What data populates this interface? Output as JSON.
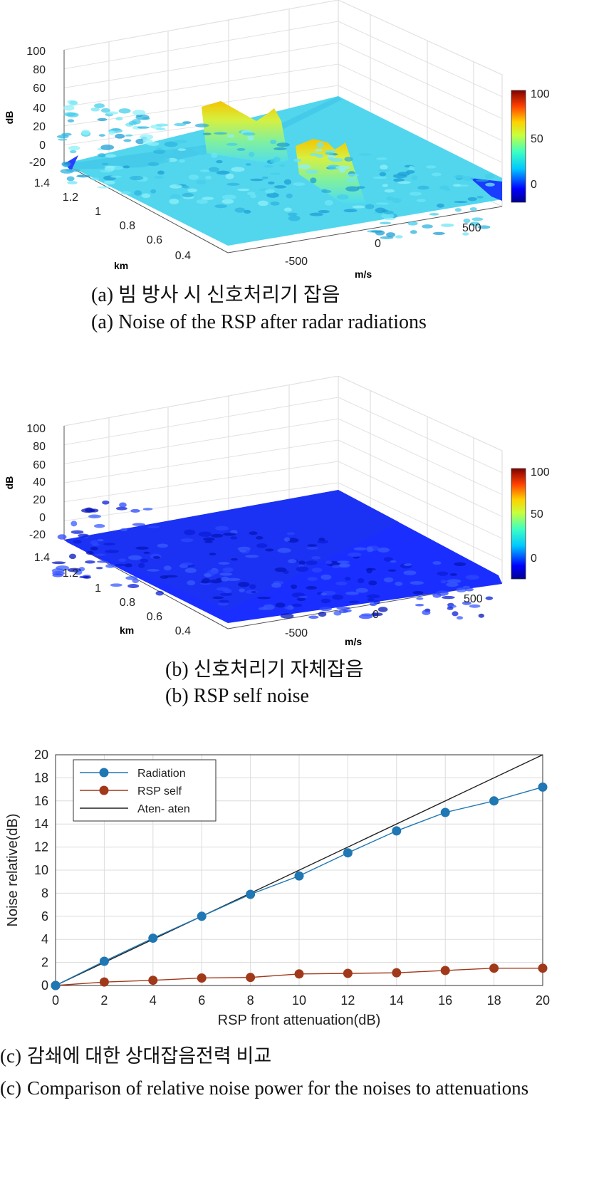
{
  "panels": [
    {
      "caption_ko": "(a) 빔 방사 시 신호처리기 잡음",
      "caption_en": "(a) Noise of the RSP after radar radiations",
      "zlabel": "dB",
      "xlabel": "m/s",
      "ylabel": "km",
      "z_ticks": [
        "100",
        "80",
        "60",
        "40",
        "20",
        "0",
        "-20"
      ],
      "y_ticks": [
        "1.4",
        "1.2",
        "1",
        "0.8",
        "0.6",
        "0.4"
      ],
      "x_ticks": [
        "-500",
        "0",
        "500"
      ],
      "colorbar_ticks": [
        "100",
        "50",
        "0"
      ]
    },
    {
      "caption_ko": "(b) 신호처리기 자체잡음",
      "caption_en": "(b) RSP self noise",
      "zlabel": "dB",
      "xlabel": "m/s",
      "ylabel": "km",
      "z_ticks": [
        "100",
        "80",
        "60",
        "40",
        "20",
        "0",
        "-20"
      ],
      "y_ticks": [
        "1.4",
        "1.2",
        "1",
        "0.8",
        "0.6",
        "0.4"
      ],
      "x_ticks": [
        "-500",
        "0",
        "500"
      ],
      "colorbar_ticks": [
        "100",
        "50",
        "0"
      ]
    }
  ],
  "line_chart": {
    "caption_ko_prefix": "(c)",
    "caption_ko": "감쇄에 대한 상대잡음전력 비교",
    "caption_en_prefix": "(c)",
    "caption_en": "Comparison of relative noise power for the noises to attenuations"
  },
  "chart_data": [
    {
      "type": "surface",
      "zlabel": "dB",
      "xlabel": "m/s",
      "ylabel": "km",
      "zlim": [
        -20,
        100
      ],
      "xlim": [
        -750,
        750
      ],
      "ylim": [
        0.3,
        1.4
      ],
      "surface_level_db": 0,
      "peaks_db": 30,
      "colorbar_range": [
        -20,
        100
      ],
      "colormap": "jet"
    },
    {
      "type": "surface",
      "zlabel": "dB",
      "xlabel": "m/s",
      "ylabel": "km",
      "zlim": [
        -20,
        100
      ],
      "xlim": [
        -750,
        750
      ],
      "ylim": [
        0.3,
        1.4
      ],
      "surface_level_db": -15,
      "colorbar_range": [
        -20,
        100
      ],
      "colormap": "jet"
    },
    {
      "type": "line",
      "xlabel": "RSP front attenuation(dB)",
      "ylabel": "Noise relative(dB)",
      "xlim": [
        0,
        20
      ],
      "ylim": [
        0,
        20
      ],
      "x_ticks": [
        0,
        2,
        4,
        6,
        8,
        10,
        12,
        14,
        16,
        18,
        20
      ],
      "y_ticks": [
        0,
        2,
        4,
        6,
        8,
        10,
        12,
        14,
        16,
        18,
        20
      ],
      "grid": true,
      "legend_position": "top-left",
      "series": [
        {
          "name": "Radiation",
          "color": "#1f77b4",
          "marker": true,
          "x": [
            0,
            2,
            4,
            6,
            8,
            10,
            12,
            14,
            16,
            18,
            20
          ],
          "y": [
            0,
            2.1,
            4.1,
            6.0,
            7.9,
            9.5,
            11.5,
            13.4,
            15.0,
            16.0,
            17.2
          ]
        },
        {
          "name": "RSP self",
          "color": "#a0391a",
          "marker": true,
          "x": [
            0,
            2,
            4,
            6,
            8,
            10,
            12,
            14,
            16,
            18,
            20
          ],
          "y": [
            0,
            0.3,
            0.45,
            0.65,
            0.7,
            1.0,
            1.05,
            1.1,
            1.3,
            1.5,
            1.5
          ]
        },
        {
          "name": "Aten- aten",
          "color": "#222222",
          "marker": false,
          "x": [
            0,
            20
          ],
          "y": [
            0,
            20
          ]
        }
      ]
    }
  ]
}
